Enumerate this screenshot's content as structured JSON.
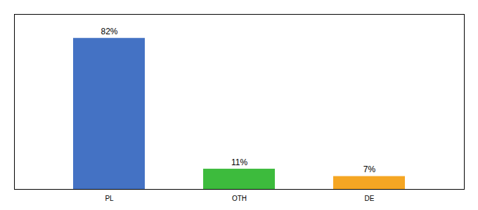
{
  "chart_data": {
    "type": "bar",
    "categories": [
      "PL",
      "OTH",
      "DE"
    ],
    "values": [
      82,
      11,
      7
    ],
    "value_labels": [
      "82%",
      "11%",
      "7%"
    ],
    "colors": [
      "#4472c4",
      "#3dbb3d",
      "#f5a623"
    ],
    "ylim": [
      0,
      95
    ],
    "data_labels": true,
    "tick_labels": "x",
    "grid": false
  }
}
